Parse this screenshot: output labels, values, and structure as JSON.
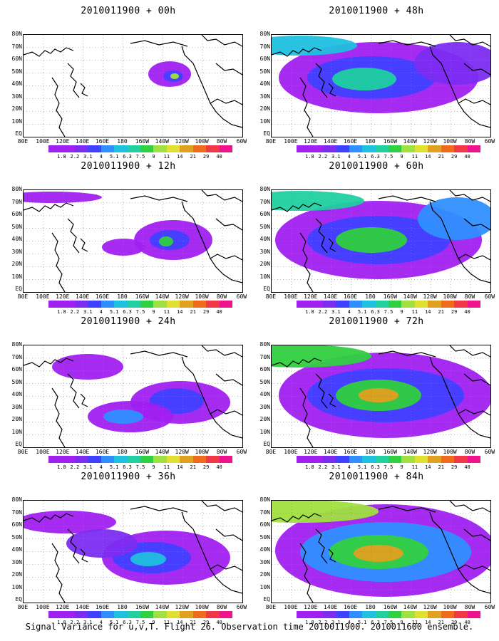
{
  "colorbar": {
    "labels": [
      "1.8",
      "2.2",
      "3.1",
      "4",
      "5.1",
      "6.3",
      "7.5",
      "9",
      "11",
      "14",
      "21",
      "29",
      "40"
    ],
    "colors": [
      "#a020f0",
      "#7b2cf0",
      "#4040ff",
      "#2f8fff",
      "#20c0e0",
      "#20d0a0",
      "#30d040",
      "#a0e040",
      "#e0e030",
      "#e0a020",
      "#f06a1c",
      "#f03848",
      "#f0148c"
    ]
  },
  "x_axis_labels": [
    "80E",
    "100E",
    "120E",
    "140E",
    "160E",
    "180",
    "160W",
    "140W",
    "120W",
    "100W",
    "80W",
    "60W"
  ],
  "y_axis_labels": [
    "80N",
    "70N",
    "60N",
    "50N",
    "40N",
    "30N",
    "20N",
    "10N",
    "EQ"
  ],
  "panels": [
    {
      "title": "2010011900 + 00h",
      "level": 0
    },
    {
      "title": "2010011900 + 12h",
      "level": 1
    },
    {
      "title": "2010011900 + 24h",
      "level": 2
    },
    {
      "title": "2010011900 + 36h",
      "level": 3
    },
    {
      "title": "2010011900 + 48h",
      "level": 4
    },
    {
      "title": "2010011900 + 60h",
      "level": 5
    },
    {
      "title": "2010011900 + 72h",
      "level": 6
    },
    {
      "title": "2010011900 + 84h",
      "level": 7
    }
  ],
  "footer": "Signal Variance for u,v,T. Flight 26. Observation time 2010011900. 2010011600 ensemble."
}
